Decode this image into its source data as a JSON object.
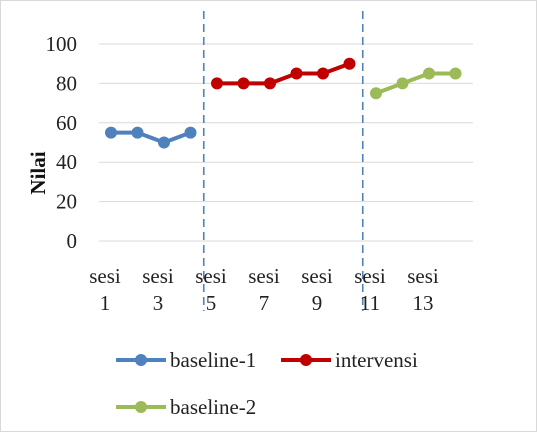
{
  "chart_data": {
    "type": "line",
    "ylabel": "Nilai",
    "ylim": [
      0,
      100
    ],
    "yticks": [
      "0",
      "20",
      "40",
      "60",
      "80",
      "100"
    ],
    "grid": true,
    "legend_position": "bottom",
    "x_tick_labels": [
      [
        "sesi",
        "1"
      ],
      [
        "sesi",
        "3"
      ],
      [
        "sesi",
        "5"
      ],
      [
        "sesi",
        "7"
      ],
      [
        "sesi",
        "9"
      ],
      [
        "sesi",
        "11"
      ],
      [
        "sesi",
        "13"
      ]
    ],
    "phase_dividers_after_session": [
      4,
      10
    ],
    "series": [
      {
        "name": "baseline-1",
        "color": "#4f81bd",
        "x": [
          1,
          2,
          3,
          4
        ],
        "values": [
          55,
          55,
          50,
          55
        ]
      },
      {
        "name": "intervensi",
        "color": "#c00000",
        "x": [
          5,
          6,
          7,
          8,
          9,
          10
        ],
        "values": [
          80,
          80,
          80,
          85,
          85,
          90
        ]
      },
      {
        "name": "baseline-2",
        "color": "#9bbb59",
        "x": [
          11,
          12,
          13,
          14
        ],
        "values": [
          75,
          80,
          85,
          85
        ]
      }
    ]
  }
}
